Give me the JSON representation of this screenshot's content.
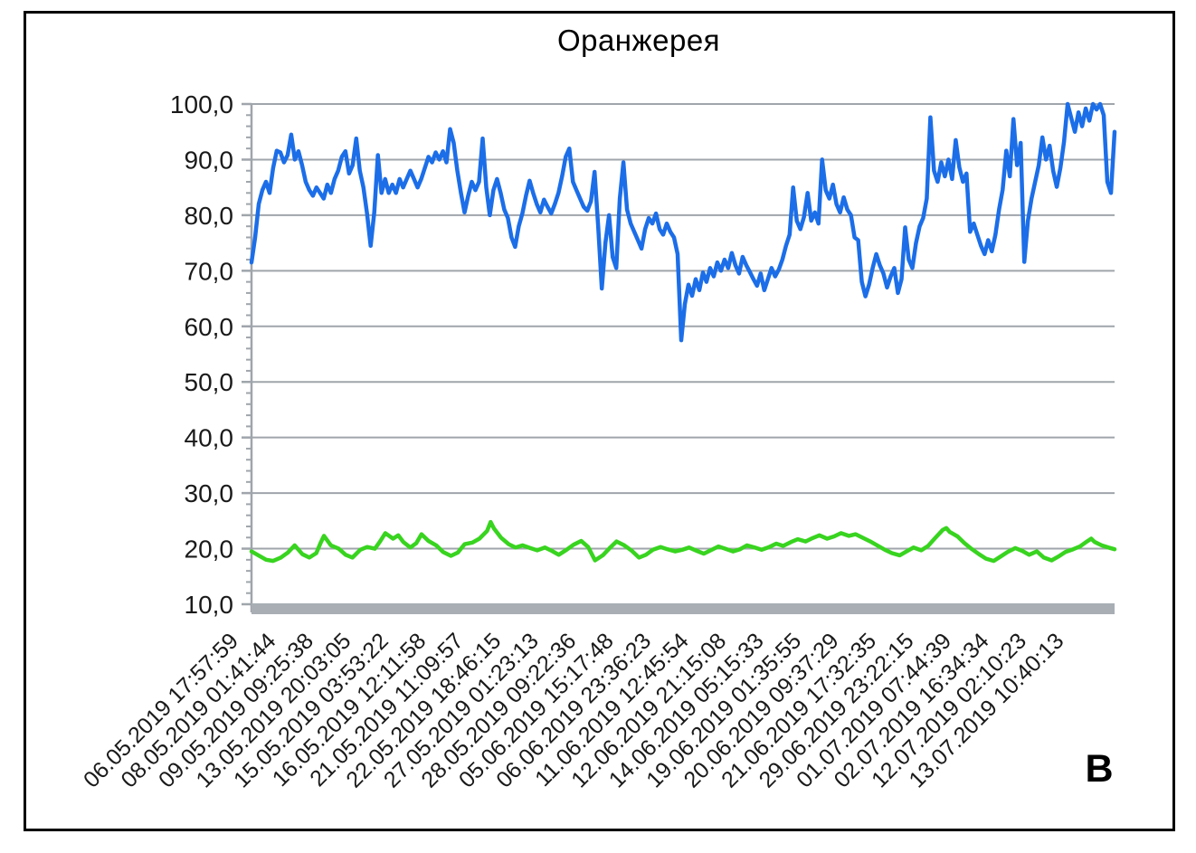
{
  "title": "Оранжерея",
  "figure_label": "В",
  "colors": {
    "series1_blue": "#1c6ee8",
    "series2_green": "#38d41f",
    "gridline_gray": "#9fa5ab",
    "axis_gray": "#9fa5ab",
    "baseline_bar_gray": "#a8aeb4",
    "text_black": "#1a1a1a",
    "border_black": "#000000",
    "background": "#ffffff"
  },
  "chart_data": {
    "type": "line",
    "title": "Оранжерея",
    "xlabel": "",
    "ylabel": "",
    "grid": "horizontal",
    "legend": "none",
    "y_axis": {
      "min": 10,
      "max": 100,
      "major_step": 10,
      "minor_step": 2,
      "tick_labels": [
        "100,0",
        "90,0",
        "80,0",
        "70,0",
        "60,0",
        "50,0",
        "40,0",
        "30,0",
        "20,0",
        "10,0"
      ]
    },
    "x_axis": {
      "rotation_deg": -45,
      "tick_labels": [
        "06.05.2019 17:57:59",
        "08.05.2019 01:41:44",
        "09.05.2019 09:25:38",
        "13.05.2019 20:03:05",
        "15.05.2019 03:53:22",
        "16.05.2019 12:11:58",
        "21.05.2019 11:09:57",
        "22.05.2019 18:46:15",
        "27.05.2019 01:23:13",
        "28.05.2019 09:22:36",
        "05.06.2019 15:17:48",
        "06.06.2019 23:36:23",
        "11.06.2019 12:45:54",
        "12.06.2019 21:15:08",
        "14.06.2019 05:15:33",
        "19.06.2019 01:35:55",
        "20.06.2019 09:37:29",
        "21.06.2019 17:32:35",
        "29.06.2019 23:22:15",
        "01.07.2019 07:44:39",
        "02.07.2019 16:34:34",
        "12.07.2019 02:10:23",
        "13.07.2019 10:40:13"
      ]
    },
    "series": [
      {
        "name": "series-1",
        "color": "#1c6ee8",
        "spacing": "even",
        "values": [
          71.5,
          76,
          82,
          84.5,
          86,
          84,
          88.5,
          91.6,
          91.3,
          89.5,
          90.8,
          94.5,
          90,
          91.5,
          89,
          86,
          84.5,
          83.5,
          85,
          84,
          83,
          85.5,
          84,
          86.5,
          88,
          90.5,
          91.5,
          87.5,
          89,
          93.8,
          88,
          85,
          80.3,
          74.5,
          80.5,
          90.8,
          84,
          86.5,
          84,
          85.5,
          84,
          86.5,
          85,
          86.5,
          88,
          86.5,
          85,
          86.5,
          88.5,
          90.5,
          89.5,
          91.3,
          90,
          91.5,
          89.5,
          95.5,
          93,
          88,
          84,
          80.5,
          83.5,
          86,
          84.5,
          86,
          93.8,
          85,
          80,
          84.5,
          86.5,
          84,
          81,
          79.5,
          76,
          74.3,
          78,
          80.3,
          83.5,
          86.2,
          84,
          82,
          80.5,
          82.8,
          81.5,
          80.3,
          82,
          84,
          87,
          90.5,
          92,
          86,
          84.5,
          83,
          81.5,
          80.8,
          82.5,
          87.8,
          78,
          66.8,
          75,
          80,
          72.5,
          70.5,
          83,
          89.5,
          81,
          78.5,
          77,
          75.5,
          74,
          77.5,
          79.5,
          78.5,
          80.3,
          77.5,
          76.5,
          78.5,
          77,
          76,
          73,
          57.5,
          64,
          67.5,
          65.5,
          68.5,
          66.5,
          69.7,
          68,
          70.5,
          69,
          71.5,
          70,
          72,
          70.5,
          73.2,
          71,
          69.5,
          72.5,
          71,
          69.8,
          68.5,
          67.3,
          69.5,
          66.5,
          68.5,
          70.5,
          69,
          70.2,
          72,
          74.5,
          76.5,
          85,
          79,
          77.5,
          79.7,
          84,
          79,
          80.5,
          78.5,
          90,
          84.5,
          83,
          85.5,
          82,
          80.5,
          83.2,
          81,
          80,
          76,
          75.5,
          68,
          65.4,
          67.5,
          70.5,
          73,
          71,
          69.5,
          67,
          69,
          70.5,
          66,
          68.5,
          77.8,
          72,
          70.5,
          75,
          78,
          79.5,
          83,
          97.6,
          88,
          86,
          89.5,
          87,
          90,
          86.5,
          93.5,
          88.6,
          86,
          87.5,
          77,
          78.5,
          76.5,
          74.5,
          73,
          75.5,
          73.5,
          76.5,
          81,
          84.6,
          91.6,
          87,
          97.3,
          89,
          93,
          71.6,
          79,
          83,
          86,
          89,
          94,
          90,
          92.5,
          88,
          85.1,
          88.5,
          93.2,
          100,
          97.5,
          95,
          98.5,
          96,
          99.2,
          97,
          100,
          99,
          100,
          98,
          86,
          84,
          95
        ]
      },
      {
        "name": "series-2",
        "color": "#38d41f",
        "spacing": "pairs",
        "points": [
          [
            0.0,
            19.5
          ],
          [
            0.008,
            18.8
          ],
          [
            0.017,
            18.0
          ],
          [
            0.025,
            17.8
          ],
          [
            0.034,
            18.4
          ],
          [
            0.042,
            19.3
          ],
          [
            0.05,
            20.6
          ],
          [
            0.059,
            19.0
          ],
          [
            0.067,
            18.4
          ],
          [
            0.075,
            19.2
          ],
          [
            0.08,
            21.0
          ],
          [
            0.084,
            22.3
          ],
          [
            0.092,
            20.6
          ],
          [
            0.101,
            20.0
          ],
          [
            0.109,
            18.9
          ],
          [
            0.117,
            18.4
          ],
          [
            0.126,
            19.8
          ],
          [
            0.134,
            20.3
          ],
          [
            0.143,
            20.0
          ],
          [
            0.149,
            21.3
          ],
          [
            0.155,
            22.8
          ],
          [
            0.164,
            21.8
          ],
          [
            0.17,
            22.4
          ],
          [
            0.176,
            21.2
          ],
          [
            0.184,
            20.2
          ],
          [
            0.191,
            21.0
          ],
          [
            0.197,
            22.6
          ],
          [
            0.205,
            21.4
          ],
          [
            0.214,
            20.6
          ],
          [
            0.222,
            19.4
          ],
          [
            0.231,
            18.7
          ],
          [
            0.239,
            19.3
          ],
          [
            0.247,
            20.8
          ],
          [
            0.256,
            21.1
          ],
          [
            0.264,
            21.8
          ],
          [
            0.273,
            23.2
          ],
          [
            0.277,
            24.8
          ],
          [
            0.281,
            23.6
          ],
          [
            0.289,
            22.0
          ],
          [
            0.298,
            20.8
          ],
          [
            0.306,
            20.2
          ],
          [
            0.314,
            20.6
          ],
          [
            0.323,
            20.1
          ],
          [
            0.331,
            19.7
          ],
          [
            0.34,
            20.2
          ],
          [
            0.348,
            19.6
          ],
          [
            0.356,
            18.9
          ],
          [
            0.365,
            19.8
          ],
          [
            0.373,
            20.7
          ],
          [
            0.382,
            21.4
          ],
          [
            0.39,
            20.3
          ],
          [
            0.398,
            17.9
          ],
          [
            0.407,
            18.8
          ],
          [
            0.415,
            20.1
          ],
          [
            0.423,
            21.3
          ],
          [
            0.432,
            20.6
          ],
          [
            0.44,
            19.7
          ],
          [
            0.449,
            18.4
          ],
          [
            0.457,
            18.9
          ],
          [
            0.465,
            19.8
          ],
          [
            0.474,
            20.3
          ],
          [
            0.482,
            19.9
          ],
          [
            0.491,
            19.5
          ],
          [
            0.499,
            19.8
          ],
          [
            0.507,
            20.2
          ],
          [
            0.516,
            19.6
          ],
          [
            0.524,
            19.1
          ],
          [
            0.532,
            19.7
          ],
          [
            0.541,
            20.4
          ],
          [
            0.549,
            20.0
          ],
          [
            0.558,
            19.5
          ],
          [
            0.566,
            19.9
          ],
          [
            0.574,
            20.6
          ],
          [
            0.583,
            20.2
          ],
          [
            0.591,
            19.8
          ],
          [
            0.6,
            20.3
          ],
          [
            0.608,
            20.9
          ],
          [
            0.616,
            20.5
          ],
          [
            0.625,
            21.2
          ],
          [
            0.633,
            21.7
          ],
          [
            0.642,
            21.3
          ],
          [
            0.65,
            21.9
          ],
          [
            0.658,
            22.4
          ],
          [
            0.667,
            21.8
          ],
          [
            0.675,
            22.2
          ],
          [
            0.683,
            22.8
          ],
          [
            0.692,
            22.3
          ],
          [
            0.7,
            22.6
          ],
          [
            0.709,
            21.9
          ],
          [
            0.717,
            21.3
          ],
          [
            0.725,
            20.6
          ],
          [
            0.734,
            19.8
          ],
          [
            0.742,
            19.2
          ],
          [
            0.751,
            18.8
          ],
          [
            0.759,
            19.5
          ],
          [
            0.767,
            20.2
          ],
          [
            0.776,
            19.7
          ],
          [
            0.784,
            20.5
          ],
          [
            0.792,
            21.9
          ],
          [
            0.801,
            23.4
          ],
          [
            0.805,
            23.7
          ],
          [
            0.809,
            23.0
          ],
          [
            0.818,
            22.2
          ],
          [
            0.826,
            21.0
          ],
          [
            0.834,
            20.0
          ],
          [
            0.843,
            19.0
          ],
          [
            0.851,
            18.2
          ],
          [
            0.86,
            17.8
          ],
          [
            0.868,
            18.6
          ],
          [
            0.876,
            19.4
          ],
          [
            0.885,
            20.1
          ],
          [
            0.893,
            19.6
          ],
          [
            0.901,
            18.9
          ],
          [
            0.91,
            19.5
          ],
          [
            0.918,
            18.4
          ],
          [
            0.927,
            17.9
          ],
          [
            0.935,
            18.6
          ],
          [
            0.943,
            19.4
          ],
          [
            0.952,
            19.9
          ],
          [
            0.96,
            20.4
          ],
          [
            0.968,
            21.3
          ],
          [
            0.973,
            21.8
          ],
          [
            0.977,
            21.2
          ],
          [
            0.985,
            20.6
          ],
          [
            0.993,
            20.2
          ],
          [
            1.0,
            19.9
          ]
        ]
      }
    ]
  }
}
